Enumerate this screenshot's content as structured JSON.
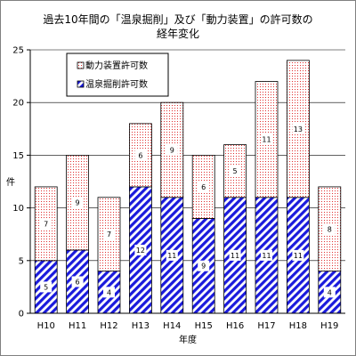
{
  "chart_data": {
    "type": "bar",
    "stacked": true,
    "title_lines": [
      "過去10年間の「温泉掘削」及び「動力装置」の許可数の",
      "経年変化"
    ],
    "xlabel": "年度",
    "ylabel": "件",
    "ylim": [
      0,
      25
    ],
    "yticks": [
      0,
      5,
      10,
      15,
      20,
      25
    ],
    "grid": "horizontal",
    "legend_position": "top-left",
    "categories": [
      "H10",
      "H11",
      "H12",
      "H13",
      "H14",
      "H15",
      "H16",
      "H17",
      "H18",
      "H19"
    ],
    "series": [
      {
        "name": "温泉掘削許可数",
        "values": [
          5,
          6,
          4,
          12,
          11,
          9,
          11,
          11,
          11,
          4
        ],
        "pattern": "diagonal-stripe",
        "color": "#1a1adc"
      },
      {
        "name": "動力装置許可数",
        "values": [
          7,
          9,
          7,
          6,
          9,
          6,
          5,
          11,
          13,
          8
        ],
        "pattern": "dots",
        "color": "#e03030"
      }
    ],
    "legend_order": [
      1,
      0
    ]
  }
}
